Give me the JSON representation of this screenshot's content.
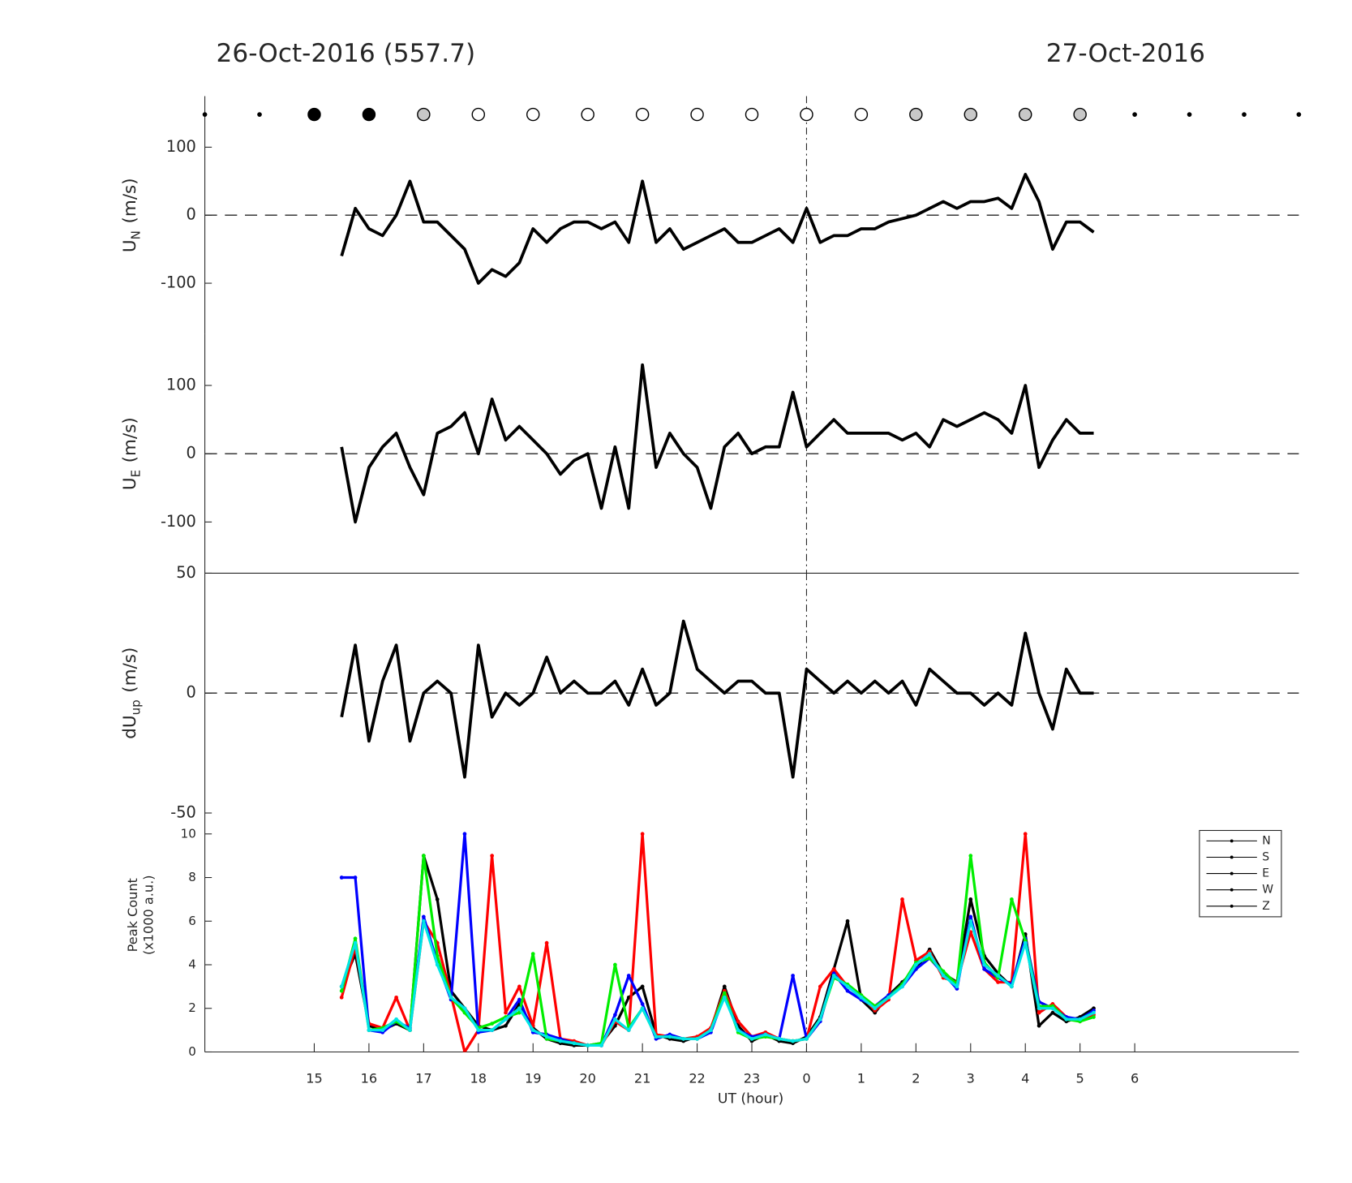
{
  "chart_data": [
    {
      "type": "line",
      "title": "26-Oct-2016 (557.7)",
      "subtitle": "27-Oct-2016",
      "ylabel": "U",
      "ylabel_sub": "N",
      "ylabel_unit": "(m/s)",
      "xlim": [
        13,
        33
      ],
      "ylim": [
        -175,
        175
      ],
      "yticks": [
        -100,
        0,
        100
      ],
      "hline": 0,
      "vline": 24,
      "color": "#000000",
      "markers": {
        "x": [
          13,
          14,
          15,
          16,
          17,
          18,
          19,
          20,
          21,
          22,
          23,
          24,
          25,
          26,
          27,
          28,
          29,
          30,
          31,
          32,
          33
        ],
        "r": [
          2,
          2,
          7,
          7,
          7,
          7,
          7,
          7,
          7,
          7,
          7,
          7,
          7,
          7,
          7,
          7,
          7,
          2,
          2,
          2,
          2
        ],
        "fill": [
          "#000000",
          "#000000",
          "#000000",
          "#000000",
          "#c8c8c8",
          "#ffffff",
          "#ffffff",
          "#ffffff",
          "#ffffff",
          "#ffffff",
          "#ffffff",
          "#ffffff",
          "#ffffff",
          "#c8c8c8",
          "#c8c8c8",
          "#c8c8c8",
          "#c8c8c8",
          "#000000",
          "#000000",
          "#000000",
          "#000000"
        ]
      },
      "x": [
        15.5,
        15.75,
        16,
        16.25,
        16.5,
        16.75,
        17,
        17.25,
        17.5,
        17.75,
        18,
        18.25,
        18.5,
        18.75,
        19,
        19.25,
        19.5,
        19.75,
        20,
        20.25,
        20.5,
        20.75,
        21,
        21.25,
        21.5,
        21.75,
        22,
        22.25,
        22.5,
        22.75,
        23,
        23.25,
        23.5,
        23.75,
        24,
        24.25,
        24.5,
        24.75,
        25,
        25.25,
        25.5,
        25.75,
        26,
        26.25,
        26.5,
        26.75,
        27,
        27.25,
        27.5,
        27.75,
        28,
        28.25,
        28.5,
        28.75,
        29,
        29.25
      ],
      "values": [
        -60,
        10,
        -20,
        -30,
        0,
        50,
        -10,
        -10,
        -30,
        -50,
        -100,
        -80,
        -90,
        -70,
        -20,
        -40,
        -20,
        -10,
        -10,
        -20,
        -10,
        -40,
        50,
        -40,
        -20,
        -50,
        -40,
        -30,
        -20,
        -40,
        -40,
        -30,
        -20,
        -40,
        10,
        -40,
        -30,
        -30,
        -20,
        -20,
        -10,
        -5,
        0,
        10,
        20,
        10,
        20,
        20,
        25,
        10,
        60,
        20,
        -50,
        -10,
        -10,
        -25
      ]
    },
    {
      "type": "line",
      "ylabel": "U",
      "ylabel_sub": "E",
      "ylabel_unit": "(m/s)",
      "xlim": [
        13,
        33
      ],
      "ylim": [
        -175,
        175
      ],
      "yticks": [
        -100,
        0,
        100
      ],
      "hline": 0,
      "vline": 24,
      "color": "#000000",
      "x": [
        15.5,
        15.75,
        16,
        16.25,
        16.5,
        16.75,
        17,
        17.25,
        17.5,
        17.75,
        18,
        18.25,
        18.5,
        18.75,
        19,
        19.25,
        19.5,
        19.75,
        20,
        20.25,
        20.5,
        20.75,
        21,
        21.25,
        21.5,
        21.75,
        22,
        22.25,
        22.5,
        22.75,
        23,
        23.25,
        23.5,
        23.75,
        24,
        24.25,
        24.5,
        24.75,
        25,
        25.25,
        25.5,
        25.75,
        26,
        26.25,
        26.5,
        26.75,
        27,
        27.25,
        27.5,
        27.75,
        28,
        28.25,
        28.5,
        28.75,
        29,
        29.25
      ],
      "values": [
        10,
        -100,
        -20,
        10,
        30,
        -20,
        -60,
        30,
        40,
        60,
        0,
        80,
        20,
        40,
        20,
        0,
        -30,
        -10,
        0,
        -80,
        10,
        -80,
        130,
        -20,
        30,
        0,
        -20,
        -80,
        10,
        30,
        0,
        10,
        10,
        90,
        10,
        30,
        50,
        30,
        30,
        30,
        30,
        20,
        30,
        10,
        50,
        40,
        50,
        60,
        50,
        30,
        100,
        -20,
        20,
        50,
        30,
        30
      ]
    },
    {
      "type": "line",
      "ylabel": "dU",
      "ylabel_sub": "up",
      "ylabel_unit": "(m/s)",
      "xlim": [
        13,
        33
      ],
      "ylim": [
        -50,
        50
      ],
      "yticks": [
        -50,
        0,
        50
      ],
      "hline": 0,
      "vline": 24,
      "color": "#000000",
      "x": [
        15.5,
        15.75,
        16,
        16.25,
        16.5,
        16.75,
        17,
        17.25,
        17.5,
        17.75,
        18,
        18.25,
        18.5,
        18.75,
        19,
        19.25,
        19.5,
        19.75,
        20,
        20.25,
        20.5,
        20.75,
        21,
        21.25,
        21.5,
        21.75,
        22,
        22.25,
        22.5,
        22.75,
        23,
        23.25,
        23.5,
        23.75,
        24,
        24.25,
        24.5,
        24.75,
        25,
        25.25,
        25.5,
        25.75,
        26,
        26.25,
        26.5,
        26.75,
        27,
        27.25,
        27.5,
        27.75,
        28,
        28.25,
        28.5,
        28.75,
        29,
        29.25
      ],
      "values": [
        -10,
        20,
        -20,
        5,
        20,
        -20,
        0,
        5,
        0,
        -35,
        20,
        -10,
        0,
        -5,
        0,
        15,
        0,
        5,
        0,
        0,
        5,
        -5,
        10,
        -5,
        0,
        30,
        10,
        5,
        0,
        5,
        5,
        0,
        0,
        -35,
        10,
        5,
        0,
        5,
        0,
        5,
        0,
        5,
        -5,
        10,
        5,
        0,
        0,
        -5,
        0,
        -5,
        25,
        0,
        -15,
        10,
        0,
        0
      ]
    },
    {
      "type": "line",
      "ylabel": "Peak Count",
      "ylabel_unit": "(x1000 a.u.)",
      "xlabel": "UT (hour)",
      "xlim": [
        13,
        33
      ],
      "ylim": [
        0,
        10.96
      ],
      "yticks": [
        0,
        2,
        4,
        6,
        8,
        10
      ],
      "xticks": [
        15,
        16,
        17,
        18,
        19,
        20,
        21,
        22,
        23,
        {
          "value": 24,
          "label": "0"
        },
        {
          "value": 25,
          "label": "1"
        },
        {
          "value": 26,
          "label": "2"
        },
        {
          "value": 27,
          "label": "3"
        },
        {
          "value": 28,
          "label": "4"
        },
        {
          "value": 29,
          "label": "5"
        },
        {
          "value": 30,
          "label": "6"
        }
      ],
      "vline": 24,
      "legend": "upper right",
      "legend_color": "#000000",
      "x": [
        15.5,
        15.75,
        16,
        16.25,
        16.5,
        16.75,
        17,
        17.25,
        17.5,
        17.75,
        18,
        18.25,
        18.5,
        18.75,
        19,
        19.25,
        19.5,
        19.75,
        20,
        20.25,
        20.5,
        20.75,
        21,
        21.25,
        21.5,
        21.75,
        22,
        22.25,
        22.5,
        22.75,
        23,
        23.25,
        23.5,
        23.75,
        24,
        24.25,
        24.5,
        24.75,
        25,
        25.25,
        25.5,
        25.75,
        26,
        26.25,
        26.5,
        26.75,
        27,
        27.25,
        27.5,
        27.75,
        28,
        28.25,
        28.5,
        28.75,
        29,
        29.25
      ],
      "series": [
        {
          "name": "N",
          "color": "#000000",
          "values": [
            3,
            4.5,
            1.2,
            1,
            1.3,
            1,
            9,
            7,
            2.8,
            2,
            1.2,
            1,
            1.2,
            2.2,
            1.1,
            0.6,
            0.4,
            0.3,
            0.3,
            0.4,
            1.2,
            2.5,
            3,
            0.8,
            0.6,
            0.5,
            0.7,
            1,
            3,
            1.2,
            0.5,
            0.8,
            0.5,
            0.4,
            0.7,
            1.6,
            3.8,
            6,
            2.4,
            1.8,
            2.6,
            3.2,
            3.8,
            4.7,
            3.6,
            3.2,
            7,
            4.4,
            3.6,
            3,
            5.4,
            1.2,
            1.8,
            1.4,
            1.6,
            2
          ]
        },
        {
          "name": "S",
          "color": "#ff0000",
          "values": [
            2.5,
            4.8,
            1.3,
            1.1,
            2.5,
            1,
            6,
            5,
            2.6,
            0,
            1,
            9,
            1.8,
            3,
            1.2,
            5,
            0.6,
            0.5,
            0.3,
            0.3,
            1.4,
            1,
            10,
            0.8,
            0.7,
            0.6,
            0.7,
            1.1,
            2.8,
            1.4,
            0.7,
            0.9,
            0.6,
            0.5,
            0.6,
            3,
            3.8,
            3,
            2.6,
            1.9,
            2.4,
            7,
            4.2,
            4.6,
            3.4,
            3.2,
            5.5,
            3.8,
            3.2,
            3.2,
            10,
            1.8,
            2.2,
            1.6,
            1.4,
            1.7
          ]
        },
        {
          "name": "E",
          "color": "#0000ff",
          "values": [
            8,
            8,
            1,
            0.9,
            1.4,
            1.1,
            6.2,
            4.1,
            2.4,
            10,
            0.9,
            1,
            1.5,
            2.4,
            0.9,
            0.8,
            0.6,
            0.4,
            0.3,
            0.3,
            1.7,
            3.5,
            2.2,
            0.6,
            0.8,
            0.6,
            0.6,
            0.9,
            2.6,
            1,
            0.7,
            0.8,
            0.6,
            3.5,
            0.6,
            1.4,
            3.6,
            2.8,
            2.4,
            2.1,
            2.6,
            3,
            3.8,
            4.3,
            3.6,
            2.9,
            6.2,
            3.8,
            3.4,
            3.1,
            5.2,
            2.3,
            2,
            1.6,
            1.5,
            1.9
          ]
        },
        {
          "name": "W",
          "color": "#00ee00",
          "values": [
            2.8,
            5.2,
            1,
            1.1,
            1.4,
            1,
            9,
            4.4,
            2.5,
            1.8,
            1.1,
            1.3,
            1.6,
            1.8,
            4.5,
            0.6,
            0.5,
            0.4,
            0.3,
            0.4,
            4,
            1.1,
            2,
            0.7,
            0.7,
            0.6,
            0.6,
            1,
            2.7,
            0.9,
            0.6,
            0.7,
            0.6,
            0.5,
            0.6,
            1.5,
            3.4,
            3.1,
            2.6,
            2.1,
            2.5,
            3.1,
            4.1,
            4.3,
            3.7,
            3.1,
            9,
            4.1,
            3.4,
            7,
            5.1,
            2.1,
            2.1,
            1.5,
            1.4,
            1.6
          ]
        },
        {
          "name": "Z",
          "color": "#00e5e5",
          "values": [
            3,
            5,
            1,
            1,
            1.5,
            1,
            6,
            4,
            2.5,
            2,
            1,
            1,
            1.5,
            2,
            1,
            0.7,
            0.5,
            0.4,
            0.3,
            0.3,
            1.5,
            1,
            2,
            0.7,
            0.7,
            0.6,
            0.6,
            1,
            2.5,
            1,
            0.6,
            0.8,
            0.6,
            0.5,
            0.6,
            1.5,
            3.5,
            3,
            2.5,
            2,
            2.5,
            3,
            4,
            4.5,
            3.5,
            3,
            6,
            4,
            3.5,
            3,
            5,
            2,
            2,
            1.5,
            1.5,
            1.8
          ]
        }
      ]
    }
  ]
}
